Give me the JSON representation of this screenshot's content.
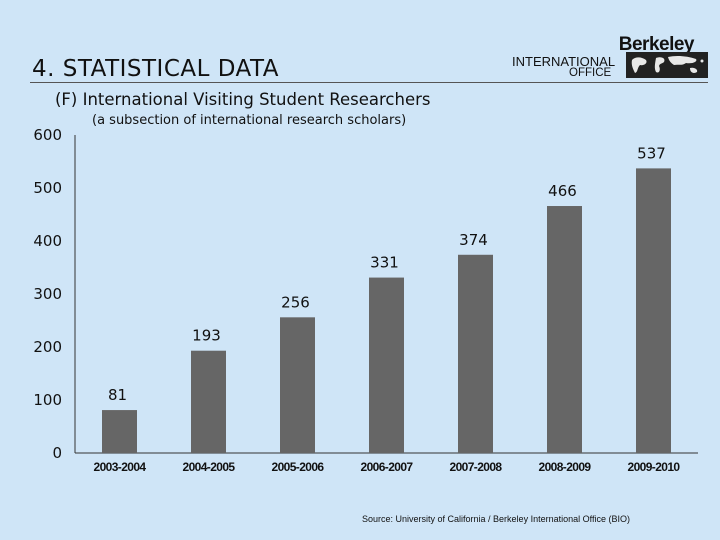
{
  "slide": {
    "title": "4. STATISTICAL DATA",
    "subtitle": "(F) International Visiting Student Researchers",
    "note": "(a subsection of international research scholars)",
    "source": "Source:  University of California / Berkeley International Office (BIO)"
  },
  "logo": {
    "line1": "Berkeley",
    "line2": "INTERNATIONAL",
    "line3": "OFFICE"
  },
  "colors": {
    "background": "#cfe5f7",
    "bar": "#666666"
  },
  "chart_data": {
    "type": "bar",
    "title": "(F) International Visiting Student Researchers",
    "xlabel": "",
    "ylabel": "",
    "categories": [
      "2003-2004",
      "2004-2005",
      "2005-2006",
      "2006-2007",
      "2007-2008",
      "2008-2009",
      "2009-2010"
    ],
    "values": [
      81,
      193,
      256,
      331,
      374,
      466,
      537
    ],
    "ylim": [
      0,
      600
    ],
    "yticks": [
      0,
      100,
      200,
      300,
      400,
      500,
      600
    ],
    "grid": false,
    "legend": "none"
  }
}
